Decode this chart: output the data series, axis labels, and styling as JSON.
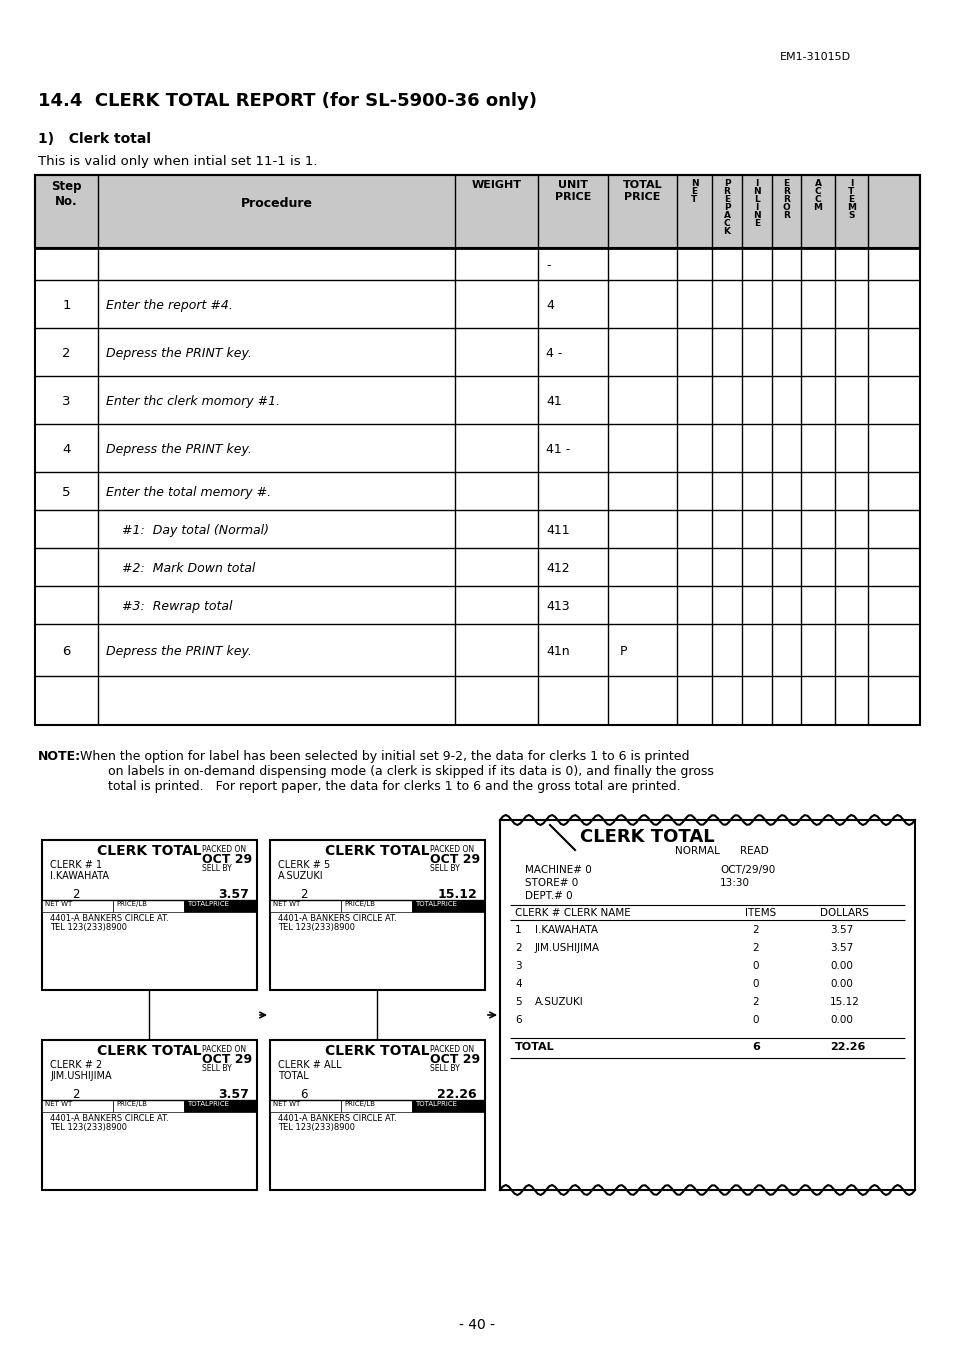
{
  "page_header": "EM1-31015D",
  "section_title": "14.4  CLERK TOTAL REPORT (for SL-5900-36 only)",
  "subsection": "1)   Clerk total",
  "intro_text": "This is valid only when intial set 11-1 is 1.",
  "table_rows": [
    {
      "step": "",
      "procedure": "",
      "unit_price": "-",
      "total_price": ""
    },
    {
      "step": "1",
      "procedure": "Enter the report #4.",
      "unit_price": "4",
      "total_price": ""
    },
    {
      "step": "2",
      "procedure": "Depress the PRINT key.",
      "unit_price": "4 -",
      "total_price": ""
    },
    {
      "step": "3",
      "procedure": "Enter thc clerk momory #1.",
      "unit_price": "41",
      "total_price": ""
    },
    {
      "step": "4",
      "procedure": "Depress the PRINT key.",
      "unit_price": "41 -",
      "total_price": ""
    },
    {
      "step": "5",
      "procedure": "Enter the total memory #.",
      "unit_price": "",
      "total_price": ""
    },
    {
      "step": "",
      "procedure": "    #1:  Day total (Normal)",
      "unit_price": "411",
      "total_price": ""
    },
    {
      "step": "",
      "procedure": "    #2:  Mark Down total",
      "unit_price": "412",
      "total_price": ""
    },
    {
      "step": "",
      "procedure": "    #3:  Rewrap total",
      "unit_price": "413",
      "total_price": ""
    },
    {
      "step": "6",
      "procedure": "Depress the PRINT key.",
      "unit_price": "41n",
      "total_price": "P"
    }
  ],
  "note_bold": "NOTE:",
  "note_rest": " When the option for label has been selected by initial set 9-2, the data for clerks 1 to 6 is printed\n        on labels in on-demand dispensing mode (a clerk is skipped if its data is 0), and finally the gross\n        total is printed.   For report paper, the data for clerks 1 to 6 and the gross total are printed.",
  "page_number": "- 40 -",
  "bg_color": "#ffffff",
  "header_bg": "#c8c8c8"
}
